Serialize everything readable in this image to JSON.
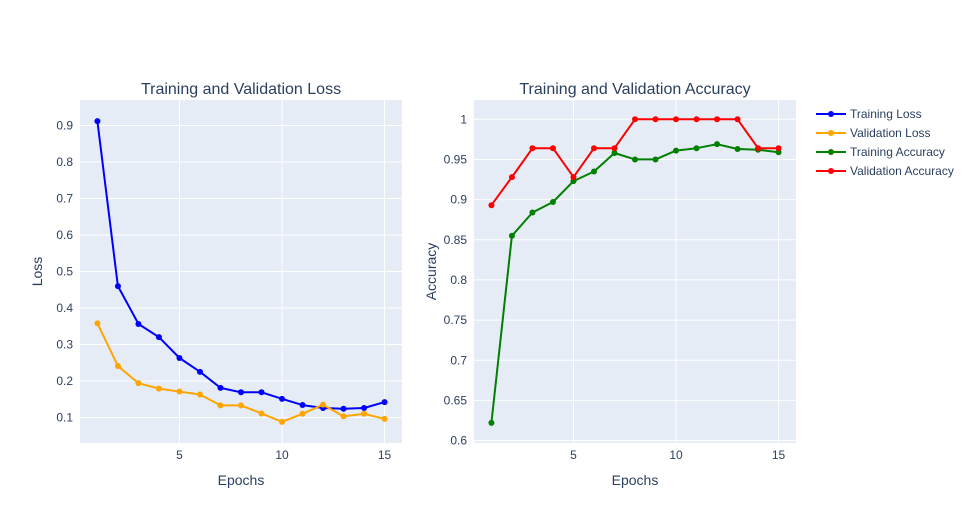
{
  "chart_data": [
    {
      "type": "line",
      "title": "Training and Validation Loss",
      "xlabel": "Epochs",
      "ylabel": "Loss",
      "xlim": [
        0.15,
        15.85
      ],
      "ylim": [
        0.03,
        0.97
      ],
      "xticks": [
        5,
        10,
        15
      ],
      "yticks": [
        0.1,
        0.2,
        0.3,
        0.4,
        0.5,
        0.6,
        0.7,
        0.8,
        0.9
      ],
      "x": [
        1,
        2,
        3,
        4,
        5,
        6,
        7,
        8,
        9,
        10,
        11,
        12,
        13,
        14,
        15
      ],
      "series": [
        {
          "name": "Training Loss",
          "color": "#0000ff",
          "values": [
            0.912,
            0.46,
            0.356,
            0.32,
            0.263,
            0.225,
            0.181,
            0.169,
            0.169,
            0.151,
            0.134,
            0.126,
            0.124,
            0.126,
            0.142
          ]
        },
        {
          "name": "Validation Loss",
          "color": "#ffa500",
          "values": [
            0.358,
            0.241,
            0.194,
            0.179,
            0.171,
            0.163,
            0.133,
            0.133,
            0.111,
            0.088,
            0.11,
            0.135,
            0.103,
            0.11,
            0.096
          ]
        }
      ],
      "grid": true
    },
    {
      "type": "line",
      "title": "Training and Validation Accuracy",
      "xlabel": "Epochs",
      "ylabel": "Accuracy",
      "xlim": [
        0.15,
        15.85
      ],
      "ylim": [
        0.597,
        1.024
      ],
      "xticks": [
        5,
        10,
        15
      ],
      "yticks": [
        0.6,
        0.65,
        0.7,
        0.75,
        0.8,
        0.85,
        0.9,
        0.95,
        1
      ],
      "x": [
        1,
        2,
        3,
        4,
        5,
        6,
        7,
        8,
        9,
        10,
        11,
        12,
        13,
        14,
        15
      ],
      "series": [
        {
          "name": "Training Accuracy",
          "color": "#008000",
          "values": [
            0.622,
            0.855,
            0.884,
            0.897,
            0.923,
            0.935,
            0.958,
            0.95,
            0.95,
            0.961,
            0.964,
            0.969,
            0.963,
            0.962,
            0.959
          ]
        },
        {
          "name": "Validation Accuracy",
          "color": "#ff0000",
          "values": [
            0.893,
            0.928,
            0.964,
            0.964,
            0.928,
            0.964,
            0.964,
            1.0,
            1.0,
            1.0,
            1.0,
            1.0,
            1.0,
            0.964,
            0.964
          ]
        }
      ],
      "grid": true
    }
  ],
  "legend": {
    "placement": "top-right",
    "items": [
      {
        "name": "Training Loss",
        "color": "#0000ff"
      },
      {
        "name": "Validation Loss",
        "color": "#ffa500"
      },
      {
        "name": "Training Accuracy",
        "color": "#008000"
      },
      {
        "name": "Validation Accuracy",
        "color": "#ff0000"
      }
    ]
  },
  "colors": {
    "plot_background": "#e5ecf6",
    "gridline": "#ffffff",
    "text": "#2a3f5f"
  }
}
